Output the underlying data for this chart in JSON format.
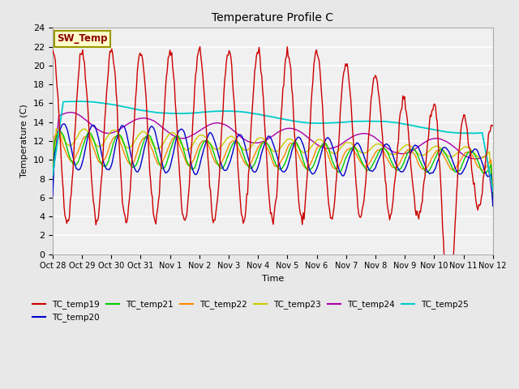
{
  "title": "Temperature Profile C",
  "xlabel": "Time",
  "ylabel": "Temperature (C)",
  "ylim": [
    0,
    24
  ],
  "fig_facecolor": "#e8e8e8",
  "plot_facecolor": "#f0f0f0",
  "grid_color": "#ffffff",
  "sw_temp_label": "SW_Temp",
  "legend_entries": [
    "TC_temp19",
    "TC_temp20",
    "TC_temp21",
    "TC_temp22",
    "TC_temp23",
    "TC_temp24",
    "TC_temp25"
  ],
  "line_colors": {
    "TC_temp19": "#cc0000",
    "TC_temp20": "#0000cc",
    "TC_temp21": "#00cc00",
    "TC_temp22": "#ff8800",
    "TC_temp23": "#cccc00",
    "TC_temp24": "#aa00aa",
    "TC_temp25": "#00cccc"
  },
  "xtick_labels": [
    "Oct 28",
    "Oct 29",
    "Oct 30",
    "Oct 31",
    "Nov 1",
    "Nov 2",
    "Nov 3",
    "Nov 4",
    "Nov 5",
    "Nov 6",
    "Nov 7",
    "Nov 8",
    "Nov 9",
    "Nov 10",
    "Nov 11",
    "Nov 12"
  ],
  "n_points": 500,
  "start_day": 0,
  "end_day": 15
}
